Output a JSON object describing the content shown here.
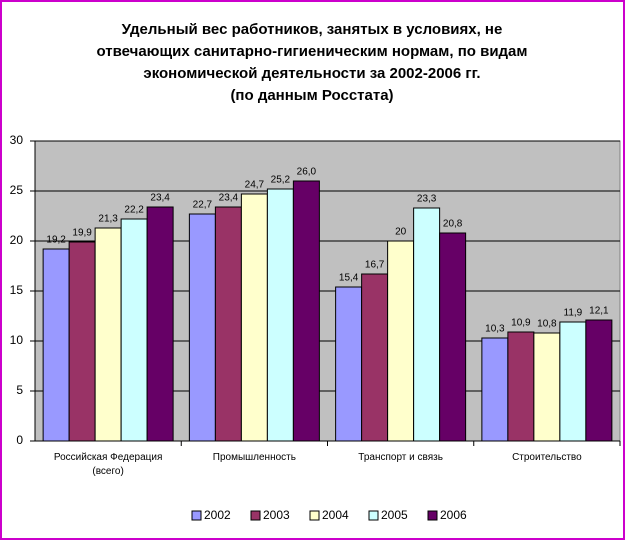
{
  "chart_data": {
    "type": "bar",
    "title": [
      "Удельный вес работников, занятых в условиях, не",
      "отвечающих санитарно-гигиеническим нормам, по видам",
      "экономической деятельности за 2002-2006 гг.",
      "(по данным Росстата)"
    ],
    "categories": [
      "Российская Федерация (всего)",
      "Промышленность",
      "Транспорт и связь",
      "Строительство"
    ],
    "series": [
      {
        "name": "2002",
        "color": "#9999ff",
        "values": [
          19.2,
          22.7,
          15.4,
          10.3
        ],
        "value_labels": [
          "19,2",
          "22,7",
          "15,4",
          "10,3"
        ]
      },
      {
        "name": "2003",
        "color": "#993366",
        "values": [
          19.9,
          23.4,
          16.7,
          10.9
        ],
        "value_labels": [
          "19,9",
          "23,4",
          "16,7",
          "10,9"
        ]
      },
      {
        "name": "2004",
        "color": "#ffffcc",
        "values": [
          21.3,
          24.7,
          20,
          10.8
        ],
        "value_labels": [
          "21,3",
          "24,7",
          "20",
          "10,8"
        ]
      },
      {
        "name": "2005",
        "color": "#ccffff",
        "values": [
          22.2,
          25.2,
          23.3,
          11.9
        ],
        "value_labels": [
          "22,2",
          "25,2",
          "23,3",
          "11,9"
        ]
      },
      {
        "name": "2006",
        "color": "#660066",
        "values": [
          23.4,
          26,
          20.8,
          12.1
        ],
        "value_labels": [
          "23,4",
          "26,0",
          "20,8",
          "12,1"
        ]
      }
    ],
    "ylim": [
      0,
      30
    ],
    "yticks": [
      0,
      5,
      10,
      15,
      20,
      25,
      30
    ],
    "grid": true,
    "plot_background": "#c0c0c0",
    "legend": "bottom"
  }
}
